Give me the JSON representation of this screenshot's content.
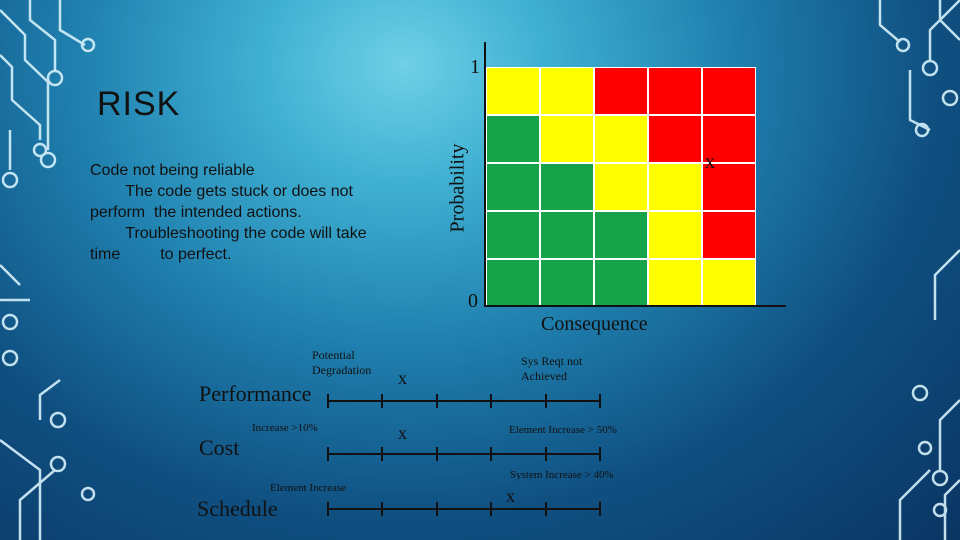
{
  "slide": {
    "title": "RISK",
    "description_lines": [
      "Code not being reliable",
      "        The code gets stuck or does not",
      "perform  the intended actions.",
      "        Troubleshooting the code will take",
      "time         to perfect."
    ]
  },
  "matrix": {
    "y_axis_label": "Probability",
    "x_axis_label": "Consequence",
    "y_top": "1",
    "y_bottom": "0",
    "marker": "x",
    "marker_cell": [
      2,
      3
    ],
    "colors": {
      "green": "#17a34a",
      "yellow": "#ffff00",
      "red": "#ff0000"
    },
    "rows": [
      [
        "yellow",
        "yellow",
        "red",
        "red",
        "red"
      ],
      [
        "green",
        "yellow",
        "yellow",
        "red",
        "red"
      ],
      [
        "green",
        "green",
        "yellow",
        "yellow",
        "red"
      ],
      [
        "green",
        "green",
        "green",
        "yellow",
        "red"
      ],
      [
        "green",
        "green",
        "green",
        "yellow",
        "yellow"
      ]
    ]
  },
  "scales": {
    "performance": {
      "label": "Performance",
      "note_left": "Potential\nDegradation",
      "marker": "x",
      "note_right": "Sys Reqt not\nAchieved"
    },
    "cost": {
      "label": "Cost",
      "note_left": "Increase >10%",
      "marker": "x",
      "note_right": "Element Increase > 50%"
    },
    "schedule": {
      "label": "Schedule",
      "note_left": "Element Increase",
      "note_right": "System Increase > 40%",
      "marker": "x"
    }
  }
}
